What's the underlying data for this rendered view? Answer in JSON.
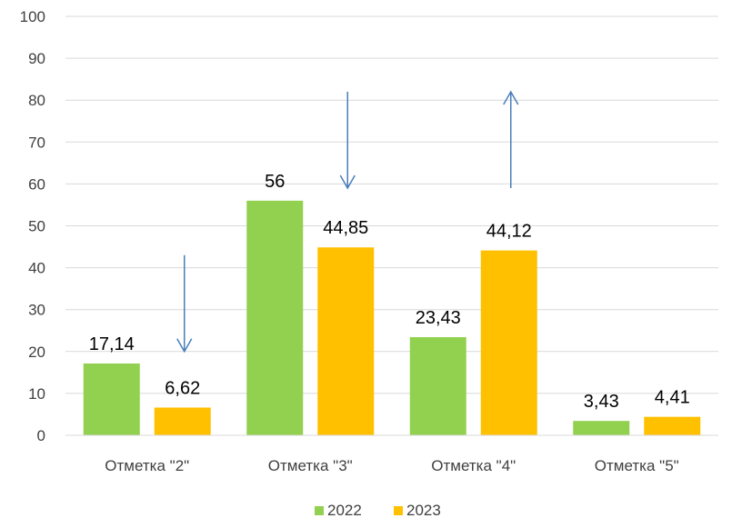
{
  "chart_data": {
    "type": "bar",
    "categories": [
      "Отметка \"2\"",
      "Отметка \"3\"",
      "Отметка \"4\"",
      "Отметка \"5\""
    ],
    "series": [
      {
        "name": "2022",
        "values": [
          17.14,
          56,
          23.43,
          3.43
        ],
        "labels": [
          "17,14",
          "56",
          "23,43",
          "3,43"
        ],
        "color": "#92d050"
      },
      {
        "name": "2023",
        "values": [
          6.62,
          44.85,
          44.12,
          4.41
        ],
        "labels": [
          "6,62",
          "44,85",
          "44,12",
          "4,41"
        ],
        "color": "#ffc000"
      }
    ],
    "yticks": [
      "0",
      "10",
      "20",
      "30",
      "40",
      "50",
      "60",
      "70",
      "80",
      "90",
      "100"
    ],
    "ylim": [
      0,
      100
    ],
    "grid": true,
    "legend": "bottom",
    "annotations": [
      {
        "type": "arrow",
        "direction": "down",
        "category": "Отметка \"2\"",
        "from": 43,
        "to": 20
      },
      {
        "type": "arrow",
        "direction": "down",
        "category": "Отметка \"3\"",
        "from": 82,
        "to": 59
      },
      {
        "type": "arrow",
        "direction": "up",
        "category": "Отметка \"4\"",
        "from": 59,
        "to": 82
      }
    ],
    "arrow_color": "#4a7ebb",
    "grid_color": "#d9d9d9"
  }
}
